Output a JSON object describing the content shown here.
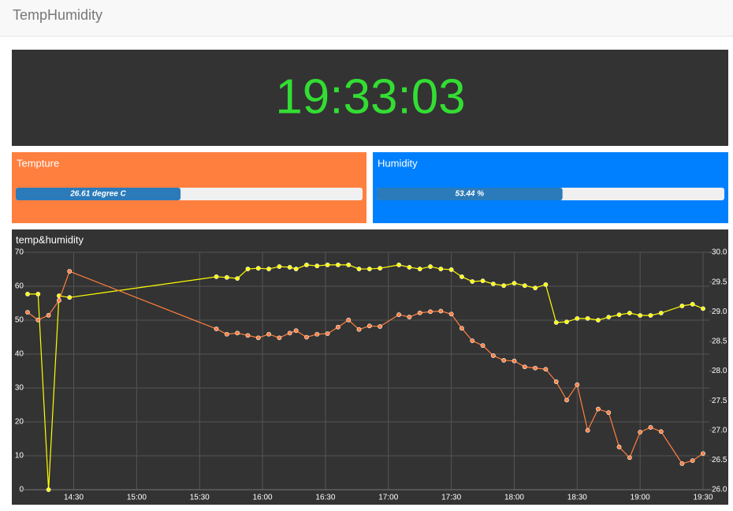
{
  "header": {
    "title": "TempHumidity"
  },
  "clock": {
    "time": "19:33:03",
    "color": "#33dd33"
  },
  "panels": [
    {
      "title": "Tempture",
      "color": "#ff7f3f",
      "value": 26.61,
      "value_label": "26.61 degree C",
      "lim": [
        0,
        56
      ],
      "bar_color": "#2b7bba"
    },
    {
      "title": "Humidity",
      "color": "#0080ff",
      "value": 53.44,
      "value_label": "53.44 %",
      "lim": [
        0,
        100
      ],
      "bar_color": "#2b7bba"
    }
  ],
  "chart_data": {
    "type": "line",
    "title": "temp&humidity",
    "grid": true,
    "x": [
      "14:08",
      "14:13",
      "14:18",
      "14:23",
      "14:28",
      "15:38",
      "15:43",
      "15:48",
      "15:53",
      "15:58",
      "16:03",
      "16:08",
      "16:13",
      "16:16",
      "16:21",
      "16:26",
      "16:31",
      "16:36",
      "16:41",
      "16:46",
      "16:51",
      "16:56",
      "17:05",
      "17:10",
      "17:15",
      "17:20",
      "17:25",
      "17:30",
      "17:35",
      "17:40",
      "17:45",
      "17:50",
      "17:55",
      "18:00",
      "18:05",
      "18:10",
      "18:15",
      "18:20",
      "18:25",
      "18:30",
      "18:35",
      "18:40",
      "18:45",
      "18:50",
      "18:55",
      "19:00",
      "19:05",
      "19:10",
      "19:20",
      "19:25",
      "19:30"
    ],
    "xlim": [
      "14:05",
      "19:33"
    ],
    "xticks": [
      "14:30",
      "15:00",
      "15:30",
      "16:00",
      "16:30",
      "17:00",
      "17:30",
      "18:00",
      "18:30",
      "19:00",
      "19:30"
    ],
    "ylim": [
      0,
      70
    ],
    "yticks": [
      0,
      10,
      20,
      30,
      40,
      50,
      60,
      70
    ],
    "y2lim": [
      26,
      30
    ],
    "y2ticks": [
      {
        "value": 26,
        "label": "26.0"
      },
      26.5,
      {
        "value": 27,
        "label": "27.0"
      },
      27.5,
      {
        "value": 28,
        "label": "28.0"
      },
      28.5,
      {
        "value": 29,
        "label": "29.0"
      },
      29.5,
      {
        "value": 30,
        "label": "30.0"
      }
    ],
    "series": [
      {
        "color": "#ffff00",
        "values": [
          57.7,
          57.7,
          0,
          57.2,
          56.7,
          62.8,
          62.6,
          62.3,
          65.1,
          65.3,
          65.1,
          65.8,
          65.6,
          65.1,
          66.3,
          66.0,
          66.3,
          66.3,
          66.3,
          65.1,
          65.1,
          65.3,
          66.3,
          65.6,
          65.1,
          65.8,
          65.1,
          64.9,
          62.8,
          61.4,
          61.6,
          60.7,
          60.2,
          60.9,
          60.2,
          59.5,
          60.5,
          49.3,
          49.5,
          50.5,
          50.5,
          50.0,
          50.9,
          51.6,
          52.1,
          51.4,
          51.4,
          52.1,
          54.2,
          54.7,
          53.4
        ]
      },
      {
        "color": "#ff7f3f",
        "axis": "y2",
        "values": [
          28.99,
          28.86,
          28.94,
          29.19,
          29.68,
          28.71,
          28.62,
          28.64,
          28.6,
          28.56,
          28.62,
          28.56,
          28.64,
          28.68,
          28.57,
          28.62,
          28.63,
          28.74,
          28.86,
          28.7,
          28.76,
          28.75,
          28.95,
          28.91,
          28.98,
          29.0,
          29.01,
          28.96,
          28.72,
          28.51,
          28.43,
          28.26,
          28.18,
          28.17,
          28.07,
          28.05,
          28.03,
          27.82,
          27.51,
          27.77,
          27.0,
          27.36,
          27.3,
          26.72,
          26.54,
          26.97,
          27.05,
          26.98,
          26.44,
          26.49,
          26.61
        ]
      }
    ]
  }
}
